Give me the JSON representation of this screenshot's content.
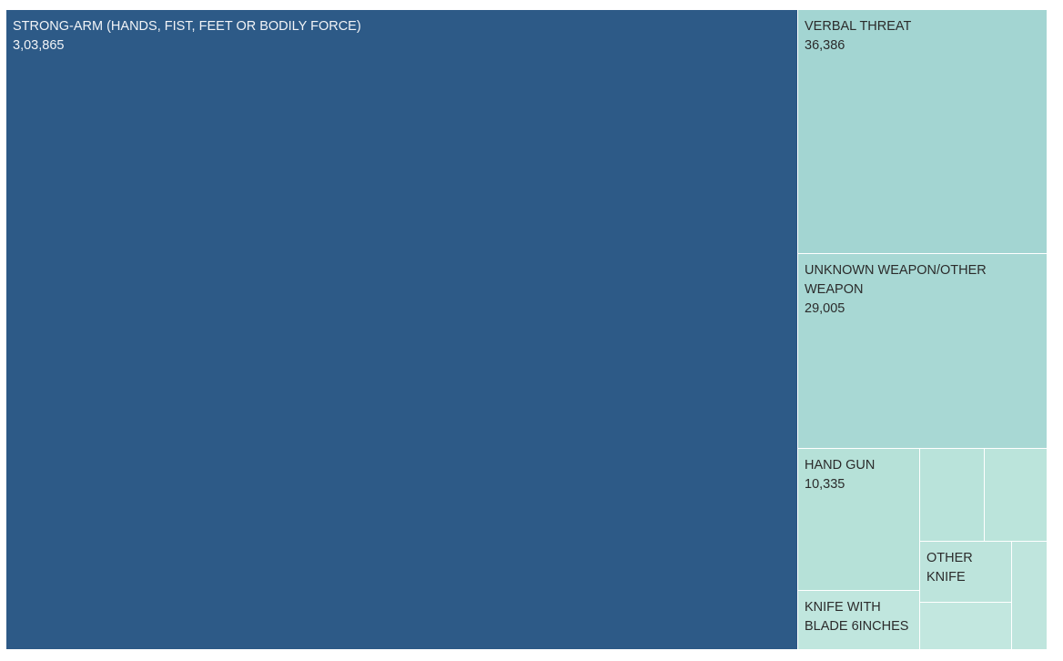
{
  "chart_data": {
    "type": "treemap",
    "title": "",
    "items": [
      {
        "name": "STRONG-ARM (HANDS, FIST, FEET OR BODILY FORCE)",
        "value": 303865,
        "value_label": "3,03,865",
        "color": "#2d5a87",
        "label_color": "light"
      },
      {
        "name": "VERBAL THREAT",
        "value": 36386,
        "value_label": "36,386",
        "color": "#a3d5d2",
        "label_color": "dark"
      },
      {
        "name": "UNKNOWN WEAPON/OTHER WEAPON",
        "value": 29005,
        "value_label": "29,005",
        "color": "#a8d8d4",
        "label_color": "dark"
      },
      {
        "name": "HAND GUN",
        "value": 10335,
        "value_label": "10,335",
        "color": "#b6e1d8",
        "label_color": "dark"
      },
      {
        "name": "",
        "value": 5400,
        "value_label": "",
        "color": "#b9e3da",
        "label_color": "dark"
      },
      {
        "name": "",
        "value": 5200,
        "value_label": "",
        "color": "#bbe4db",
        "label_color": "dark"
      },
      {
        "name": "OTHER KNIFE",
        "value": 3500,
        "value_label": "",
        "color": "#bde4dc",
        "label_color": "dark"
      },
      {
        "name": "",
        "value": 3000,
        "value_label": "",
        "color": "#bfe5dd",
        "label_color": "dark"
      },
      {
        "name": "KNIFE WITH BLADE 6INCHES",
        "value": 3300,
        "value_label": "",
        "color": "#c0e6de",
        "label_color": "dark"
      },
      {
        "name": "",
        "value": 2100,
        "value_label": "",
        "color": "#c2e7df",
        "label_color": "dark"
      }
    ]
  }
}
